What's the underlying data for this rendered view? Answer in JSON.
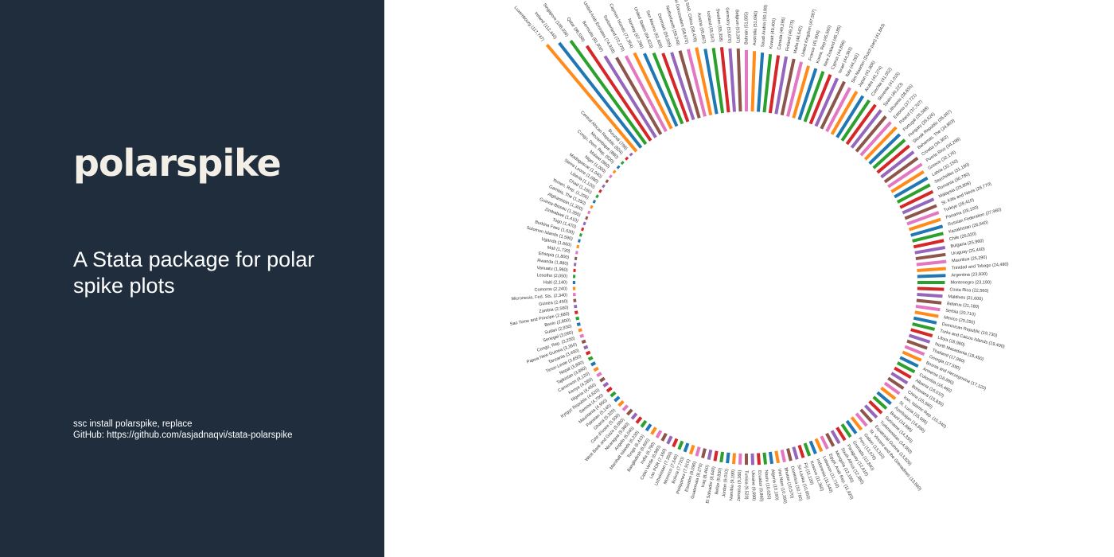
{
  "panel": {
    "title": "polarspike",
    "subtitle": "A Stata package for polar spike plots",
    "install_line": "ssc install polarspike, replace",
    "github_line": "GitHub: https://github.com/asjadnaqvi/stata-polarspike"
  },
  "chart_data": {
    "type": "polar spike",
    "title": "",
    "label_format": "name (value)",
    "palette": [
      "#ff8c1a",
      "#1f77b4",
      "#2ca02c",
      "#d62728",
      "#9467bd",
      "#8c564b",
      "#e377c2"
    ],
    "points": [
      {
        "name": "Luxembourg",
        "value": 117747
      },
      {
        "name": "Ireland",
        "value": 112440
      },
      {
        "name": "Singapore",
        "value": 108036
      },
      {
        "name": "Qatar",
        "value": 96558
      },
      {
        "name": "Bermuda",
        "value": 81000
      },
      {
        "name": "United Arab Emirates",
        "value": 74918
      },
      {
        "name": "Switzerland",
        "value": 72279
      },
      {
        "name": "Cayman Islands",
        "value": 71354
      },
      {
        "name": "Norway",
        "value": 67296
      },
      {
        "name": "United States",
        "value": 64623
      },
      {
        "name": "San Marino",
        "value": 61609
      },
      {
        "name": "Denmark",
        "value": 59905
      },
      {
        "name": "Netherlands",
        "value": 59249
      },
      {
        "name": "Brunei Darussalam",
        "value": 58670
      },
      {
        "name": "Hong Kong SAR, China",
        "value": 58478
      },
      {
        "name": "Austria",
        "value": 55867
      },
      {
        "name": "Iceland",
        "value": 55567
      },
      {
        "name": "Sweden",
        "value": 55358
      },
      {
        "name": "Germany",
        "value": 53670
      },
      {
        "name": "Belgium",
        "value": 53287
      },
      {
        "name": "Bahrain",
        "value": 51855
      },
      {
        "name": "Australia",
        "value": 51090
      },
      {
        "name": "Saudi Arabia",
        "value": 50188
      },
      {
        "name": "Kuwait",
        "value": 49400
      },
      {
        "name": "Canada",
        "value": 49296
      },
      {
        "name": "Finland",
        "value": 49275
      },
      {
        "name": "Malta",
        "value": 48642
      },
      {
        "name": "United Kingdom",
        "value": 47587
      },
      {
        "name": "France",
        "value": 45904
      },
      {
        "name": "Korea, Rep",
        "value": 45560
      },
      {
        "name": "New Zealand",
        "value": 45185
      },
      {
        "name": "Cyprus",
        "value": 44896
      },
      {
        "name": "Israel",
        "value": 44393
      },
      {
        "name": "Italy",
        "value": 44292
      },
      {
        "name": "Sint Maarten (Dutch part)",
        "value": 41843
      },
      {
        "name": "Japan",
        "value": 41806
      },
      {
        "name": "Aruba",
        "value": 41274
      },
      {
        "name": "Czechia",
        "value": 41052
      },
      {
        "name": "Slovenia",
        "value": 41015
      },
      {
        "name": "Spain",
        "value": 40223
      },
      {
        "name": "Lithuania",
        "value": 38655
      },
      {
        "name": "Estonia",
        "value": 37721
      },
      {
        "name": "Poland",
        "value": 37707
      },
      {
        "name": "Portugal",
        "value": 35588
      },
      {
        "name": "Hungary",
        "value": 35626
      },
      {
        "name": "Slovak Republic",
        "value": 35087
      },
      {
        "name": "Bahamas, The",
        "value": 34803
      },
      {
        "name": "Croatia",
        "value": 34302
      },
      {
        "name": "Puerto Rico",
        "value": 34298
      },
      {
        "name": "Greece",
        "value": 32176
      },
      {
        "name": "Latvia",
        "value": 32150
      },
      {
        "name": "Seychelles",
        "value": 31190
      },
      {
        "name": "Romania",
        "value": 30780
      },
      {
        "name": "Malaysia",
        "value": 28806
      },
      {
        "name": "St. Kitts and Nevis",
        "value": 28770
      },
      {
        "name": "Turkiye",
        "value": 28410
      },
      {
        "name": "Panama",
        "value": 28100
      },
      {
        "name": "Russian Federation",
        "value": 27960
      },
      {
        "name": "Kazakhstan",
        "value": 26940
      },
      {
        "name": "Chile",
        "value": 26020
      },
      {
        "name": "Bulgaria",
        "value": 25960
      },
      {
        "name": "Uruguay",
        "value": 25440
      },
      {
        "name": "Mauritius",
        "value": 25290
      },
      {
        "name": "Trinidad and Tobago",
        "value": 24480
      },
      {
        "name": "Argentina",
        "value": 23930
      },
      {
        "name": "Montenegro",
        "value": 23190
      },
      {
        "name": "Costa Rica",
        "value": 22560
      },
      {
        "name": "Maldives",
        "value": 21600
      },
      {
        "name": "Belarus",
        "value": 21180
      },
      {
        "name": "Serbia",
        "value": 20710
      },
      {
        "name": "Mexico",
        "value": 20250
      },
      {
        "name": "Dominican Republic",
        "value": 19730
      },
      {
        "name": "Turks and Caicos Islands",
        "value": 19400
      },
      {
        "name": "Libya",
        "value": 18980
      },
      {
        "name": "North Macedonia",
        "value": 18450
      },
      {
        "name": "Thailand",
        "value": 17990
      },
      {
        "name": "Georgia",
        "value": 17590
      },
      {
        "name": "Bosnia and Herzegovina",
        "value": 17120
      },
      {
        "name": "Armenia",
        "value": 16880
      },
      {
        "name": "Colombia",
        "value": 16460
      },
      {
        "name": "Albania",
        "value": 16010
      },
      {
        "name": "Botswana",
        "value": 15830
      },
      {
        "name": "China",
        "value": 15560
      },
      {
        "name": "Iran, Islamic Rep.",
        "value": 15340
      },
      {
        "name": "St. Lucia",
        "value": 15080
      },
      {
        "name": "Azerbaijan",
        "value": 14890
      },
      {
        "name": "Brazil",
        "value": 14660
      },
      {
        "name": "Suriname",
        "value": 14330
      },
      {
        "name": "Turkmenistan",
        "value": 14050
      },
      {
        "name": "Equatorial Guinea",
        "value": 13820
      },
      {
        "name": "St. Vincent and the Grenadines",
        "value": 13560
      },
      {
        "name": "Gabon",
        "value": 13310
      },
      {
        "name": "Peru",
        "value": 13070
      },
      {
        "name": "Grenada",
        "value": 12840
      },
      {
        "name": "Paraguay",
        "value": 12610
      },
      {
        "name": "South Africa",
        "value": 12380
      },
      {
        "name": "Mongolia",
        "value": 12150
      },
      {
        "name": "Egypt, Arab Rep.",
        "value": 11920
      },
      {
        "name": "Lebanon",
        "value": 11710
      },
      {
        "name": "Indonesia",
        "value": 11540
      },
      {
        "name": "Kosovo",
        "value": 11360
      },
      {
        "name": "Fiji",
        "value": 11120
      },
      {
        "name": "Sri Lanka",
        "value": 10950
      },
      {
        "name": "Dominica",
        "value": 10760
      },
      {
        "name": "Bhutan",
        "value": 10570
      },
      {
        "name": "Viet Nam",
        "value": 10390
      },
      {
        "name": "Algeria",
        "value": 10190
      },
      {
        "name": "Nauru",
        "value": 10020
      },
      {
        "name": "Ecuador",
        "value": 9860
      },
      {
        "name": "Ukraine",
        "value": 9690
      },
      {
        "name": "Tunisia",
        "value": 9520
      },
      {
        "name": "Jamaica",
        "value": 9360
      },
      {
        "name": "Namibia",
        "value": 9190
      },
      {
        "name": "Jordan",
        "value": 9010
      },
      {
        "name": "Belize",
        "value": 8830
      },
      {
        "name": "El Salvador",
        "value": 8640
      },
      {
        "name": "Iraq",
        "value": 8460
      },
      {
        "name": "Guatemala",
        "value": 8270
      },
      {
        "name": "Eswatini",
        "value": 8090
      },
      {
        "name": "Philippines",
        "value": 7910
      },
      {
        "name": "Bolivia",
        "value": 7720
      },
      {
        "name": "Morocco",
        "value": 7540
      },
      {
        "name": "Uzbekistan",
        "value": 7350
      },
      {
        "name": "Lao PDR",
        "value": 7160
      },
      {
        "name": "Cabo Verde",
        "value": 6980
      },
      {
        "name": "India",
        "value": 6790
      },
      {
        "name": "Bangladesh",
        "value": 6600
      },
      {
        "name": "Tonga",
        "value": 6410
      },
      {
        "name": "Marshall Islands",
        "value": 6230
      },
      {
        "name": "Angola",
        "value": 6040
      },
      {
        "name": "Nicaragua",
        "value": 5860
      },
      {
        "name": "West Bank and Gaza",
        "value": 5680
      },
      {
        "name": "Cote d'Ivoire",
        "value": 5500
      },
      {
        "name": "Ghana",
        "value": 5320
      },
      {
        "name": "Pakistan",
        "value": 5140
      },
      {
        "name": "Mauritania",
        "value": 4960
      },
      {
        "name": "Samoa",
        "value": 4790
      },
      {
        "name": "Kyrgyz Republic",
        "value": 4620
      },
      {
        "name": "Nigeria",
        "value": 4450
      },
      {
        "name": "Kenya",
        "value": 4280
      },
      {
        "name": "Cameroon",
        "value": 4120
      },
      {
        "name": "Tajikistan",
        "value": 3960
      },
      {
        "name": "Nepal",
        "value": 3800
      },
      {
        "name": "Timor-Leste",
        "value": 3650
      },
      {
        "name": "Tanzania",
        "value": 3490
      },
      {
        "name": "Papua New Guinea",
        "value": 3350
      },
      {
        "name": "Congo, Rep.",
        "value": 3200
      },
      {
        "name": "Senegal",
        "value": 3060
      },
      {
        "name": "Sudan",
        "value": 2930
      },
      {
        "name": "Benin",
        "value": 2800
      },
      {
        "name": "Sao Tome and Principe",
        "value": 2680
      },
      {
        "name": "Zambia",
        "value": 2560
      },
      {
        "name": "Guinea",
        "value": 2450
      },
      {
        "name": "Micronesia, Fed. Sts.",
        "value": 2340
      },
      {
        "name": "Comoros",
        "value": 2240
      },
      {
        "name": "Haiti",
        "value": 2140
      },
      {
        "name": "Lesotho",
        "value": 2050
      },
      {
        "name": "Vanuatu",
        "value": 1960
      },
      {
        "name": "Rwanda",
        "value": 1880
      },
      {
        "name": "Ethiopia",
        "value": 1800
      },
      {
        "name": "Mali",
        "value": 1730
      },
      {
        "name": "Uganda",
        "value": 1660
      },
      {
        "name": "Solomon Islands",
        "value": 1590
      },
      {
        "name": "Burkina Faso",
        "value": 1530
      },
      {
        "name": "Togo",
        "value": 1470
      },
      {
        "name": "Zimbabwe",
        "value": 1410
      },
      {
        "name": "Guinea-Bissau",
        "value": 1350
      },
      {
        "name": "Afghanistan",
        "value": 1300
      },
      {
        "name": "Gambia, The",
        "value": 1250
      },
      {
        "name": "Yemen, Rep.",
        "value": 1200
      },
      {
        "name": "Chad",
        "value": 1160
      },
      {
        "name": "Liberia",
        "value": 1120
      },
      {
        "name": "Sierra Leone",
        "value": 1080
      },
      {
        "name": "Madagascar",
        "value": 1040
      },
      {
        "name": "Niger",
        "value": 1000
      },
      {
        "name": "Malawi",
        "value": 960
      },
      {
        "name": "Congo, Dem. Rep.",
        "value": 920
      },
      {
        "name": "Mozambique",
        "value": 880
      },
      {
        "name": "Central African Republic",
        "value": 824
      },
      {
        "name": "Burundi",
        "value": 798
      }
    ]
  }
}
